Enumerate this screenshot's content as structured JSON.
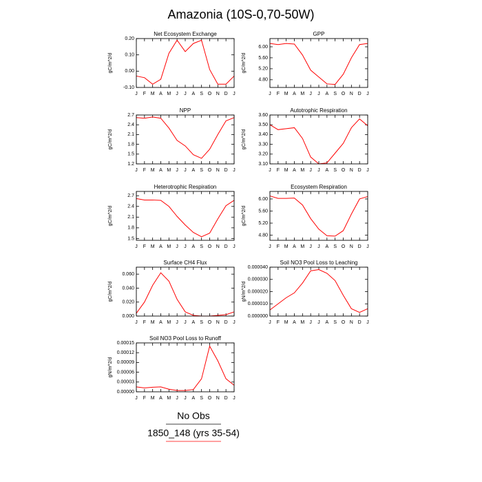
{
  "title": "Amazonia (10S-0,70-50W)",
  "chart_data": [
    {
      "type": "line",
      "title": "Net Ecosystem Exchange",
      "ylabel": "gC/m^2/d",
      "color": "#ff0000",
      "categories": [
        "J",
        "F",
        "M",
        "A",
        "M",
        "J",
        "J",
        "A",
        "S",
        "O",
        "N",
        "D",
        "J"
      ],
      "values": [
        -0.03,
        -0.04,
        -0.08,
        -0.05,
        0.11,
        0.19,
        0.12,
        0.17,
        0.19,
        0.01,
        -0.08,
        -0.08,
        -0.03
      ],
      "ylim": [
        -0.1,
        0.2
      ],
      "yticks": [
        {
          "value": -0.1,
          "label": "-0.10"
        },
        {
          "value": 0,
          "label": "0.00"
        },
        {
          "value": 0.1,
          "label": "0.10"
        },
        {
          "value": 0.2,
          "label": "0.20"
        }
      ]
    },
    {
      "type": "line",
      "title": "GPP",
      "ylabel": "gC/m^2/d",
      "color": "#ff0000",
      "categories": [
        "J",
        "F",
        "M",
        "A",
        "M",
        "J",
        "J",
        "A",
        "S",
        "O",
        "N",
        "D",
        "J"
      ],
      "values": [
        6.12,
        6.08,
        6.12,
        6.1,
        5.7,
        5.15,
        4.9,
        4.65,
        4.63,
        5.0,
        5.6,
        6.08,
        6.12
      ],
      "ylim": [
        4.52,
        6.3
      ],
      "yticks": [
        {
          "value": 4.8,
          "label": "4.80"
        },
        {
          "value": 5.2,
          "label": "5.20"
        },
        {
          "value": 5.6,
          "label": "5.60"
        },
        {
          "value": 6,
          "label": "6.00"
        }
      ]
    },
    {
      "type": "line",
      "title": "NPP",
      "ylabel": "gC/m^2/d",
      "color": "#ff0000",
      "categories": [
        "J",
        "F",
        "M",
        "A",
        "M",
        "J",
        "J",
        "A",
        "S",
        "O",
        "N",
        "D",
        "J"
      ],
      "values": [
        2.62,
        2.6,
        2.64,
        2.6,
        2.3,
        1.92,
        1.75,
        1.48,
        1.37,
        1.65,
        2.1,
        2.52,
        2.62
      ],
      "ylim": [
        1.2,
        2.7
      ],
      "yticks": [
        1.2,
        1.5,
        1.8,
        2.1,
        2.4,
        2.7
      ]
    },
    {
      "type": "line",
      "title": "Autotrophic Respiration",
      "ylabel": "gC/m^2/d",
      "color": "#ff0000",
      "categories": [
        "J",
        "F",
        "M",
        "A",
        "M",
        "J",
        "J",
        "A",
        "S",
        "O",
        "N",
        "D",
        "J"
      ],
      "values": [
        3.5,
        3.45,
        3.46,
        3.47,
        3.36,
        3.17,
        3.1,
        3.11,
        3.21,
        3.31,
        3.47,
        3.56,
        3.49
      ],
      "ylim": [
        3.1,
        3.6
      ],
      "yticks": [
        {
          "value": 3.1,
          "label": "3.10"
        },
        {
          "value": 3.2,
          "label": "3.20"
        },
        {
          "value": 3.3,
          "label": "3.30"
        },
        {
          "value": 3.4,
          "label": "3.40"
        },
        {
          "value": 3.5,
          "label": "3.50"
        },
        {
          "value": 3.6,
          "label": "3.60"
        }
      ]
    },
    {
      "type": "line",
      "title": "Heterotrophic Respiration",
      "ylabel": "gC/m^2/d",
      "color": "#ff0000",
      "categories": [
        "J",
        "F",
        "M",
        "A",
        "M",
        "J",
        "J",
        "A",
        "S",
        "O",
        "N",
        "D",
        "J"
      ],
      "values": [
        2.62,
        2.58,
        2.58,
        2.57,
        2.4,
        2.12,
        1.88,
        1.67,
        1.55,
        1.65,
        2.05,
        2.42,
        2.57
      ],
      "ylim": [
        1.45,
        2.82
      ],
      "yticks": [
        1.5,
        1.8,
        2.1,
        2.4,
        2.7
      ]
    },
    {
      "type": "line",
      "title": "Ecosystem Respiration",
      "ylabel": "gC/m^2/d",
      "color": "#ff0000",
      "categories": [
        "J",
        "F",
        "M",
        "A",
        "M",
        "J",
        "J",
        "A",
        "S",
        "O",
        "N",
        "D",
        "J"
      ],
      "values": [
        6.1,
        6.02,
        6.02,
        6.03,
        5.8,
        5.35,
        5.0,
        4.78,
        4.77,
        4.95,
        5.5,
        6.0,
        6.08
      ],
      "ylim": [
        4.63,
        6.25
      ],
      "yticks": [
        {
          "value": 4.8,
          "label": "4.80"
        },
        {
          "value": 5.2,
          "label": "5.20"
        },
        {
          "value": 5.6,
          "label": "5.60"
        },
        {
          "value": 6,
          "label": "6.00"
        }
      ]
    },
    {
      "type": "line",
      "title": "Surface CH4 Flux",
      "ylabel": "gC/m^2/d",
      "color": "#ff0000",
      "categories": [
        "J",
        "F",
        "M",
        "A",
        "M",
        "J",
        "J",
        "A",
        "S",
        "O",
        "N",
        "D",
        "J"
      ],
      "values": [
        0.004,
        0.02,
        0.044,
        0.062,
        0.05,
        0.024,
        0.006,
        0.001,
        0.0,
        0.0,
        0.001,
        0.002,
        0.006
      ],
      "ylim": [
        0,
        0.07
      ],
      "yticks": [
        {
          "value": 0,
          "label": "0.000"
        },
        {
          "value": 0.02,
          "label": "0.020"
        },
        {
          "value": 0.04,
          "label": "0.040"
        },
        {
          "value": 0.06,
          "label": "0.060"
        }
      ]
    },
    {
      "type": "line",
      "title": "Soil NO3 Pool Loss to Leaching",
      "ylabel": "gN/m^2/d",
      "color": "#ff0000",
      "categories": [
        "J",
        "F",
        "M",
        "A",
        "M",
        "J",
        "J",
        "A",
        "S",
        "O",
        "N",
        "D",
        "J"
      ],
      "values": [
        5e-06,
        1e-05,
        1.5e-05,
        1.9e-05,
        2.7e-05,
        3.7e-05,
        3.8e-05,
        3.5e-05,
        2.9e-05,
        1.7e-05,
        6e-06,
        3e-06,
        6e-06
      ],
      "ylim": [
        0,
        4e-05
      ],
      "yticks": [
        {
          "value": 0,
          "label": "0.000000"
        },
        {
          "value": 1e-05,
          "label": "0.000010"
        },
        {
          "value": 2e-05,
          "label": "0.000020"
        },
        {
          "value": 3e-05,
          "label": "0.000030"
        },
        {
          "value": 4e-05,
          "label": "0.000040"
        }
      ]
    },
    {
      "type": "line",
      "title": "Soil NO3 Pool Loss to Runoff",
      "ylabel": "gN/m^2/d",
      "color": "#ff0000",
      "categories": [
        "J",
        "F",
        "M",
        "A",
        "M",
        "J",
        "J",
        "A",
        "S",
        "O",
        "N",
        "D",
        "J"
      ],
      "values": [
        1.5e-05,
        1.2e-05,
        1.4e-05,
        1.5e-05,
        8e-06,
        4e-06,
        4e-06,
        7e-06,
        4e-05,
        0.00014,
        9.5e-05,
        4e-05,
        2e-05
      ],
      "ylim": [
        0,
        0.00015
      ],
      "yticks": [
        {
          "value": 0,
          "label": "0.00000"
        },
        3e-05,
        6e-05,
        9e-05,
        {
          "value": 0.00012,
          "label": "0.00012"
        },
        0.00015
      ]
    }
  ],
  "legend": [
    {
      "name": "No Obs",
      "color": "#000000"
    },
    {
      "name": "1850_148 (yrs 35-54)",
      "color": "#ff0000"
    }
  ]
}
